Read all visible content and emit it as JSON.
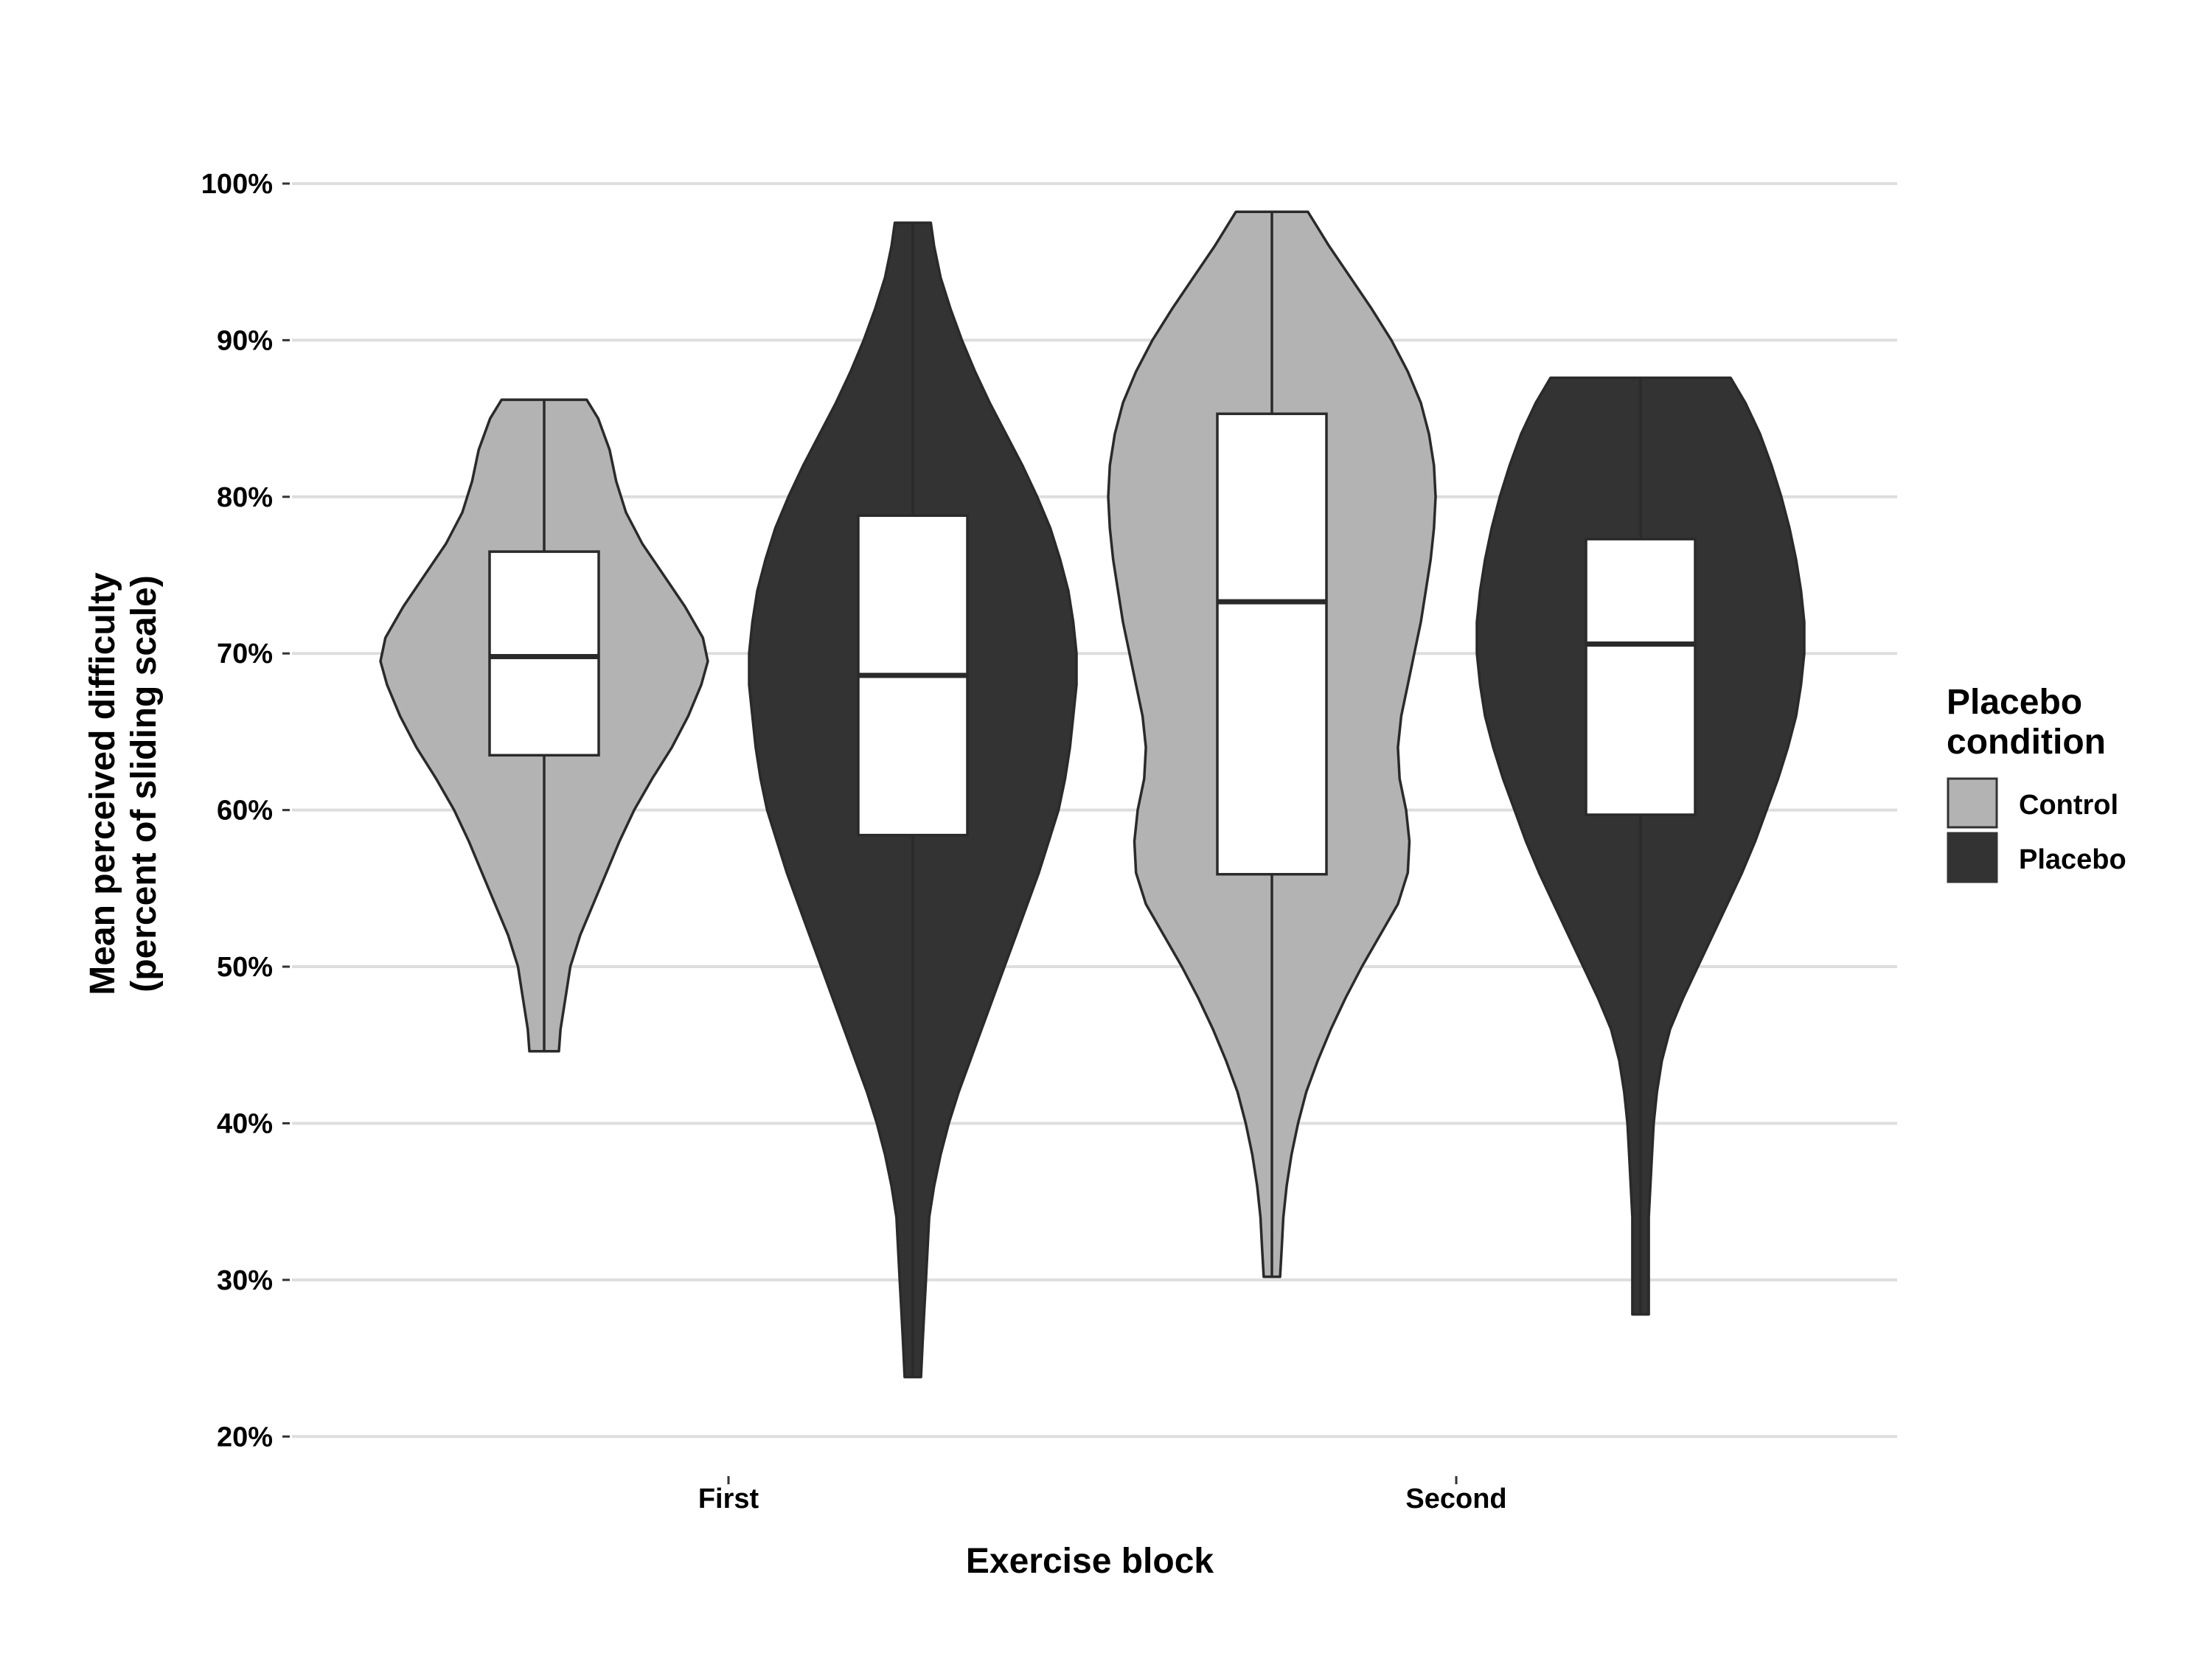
{
  "chart_data": {
    "type": "violin",
    "xlabel": "Exercise block",
    "ylabel_line1": "Mean perceived difficulty",
    "ylabel_line2": "(percent of sliding scale)",
    "y_tick_labels": [
      "20%",
      "30%",
      "40%",
      "50%",
      "60%",
      "70%",
      "80%",
      "90%",
      "100%"
    ],
    "y_ticks": [
      20,
      30,
      40,
      50,
      60,
      70,
      80,
      90,
      100
    ],
    "ylim": [
      17,
      104
    ],
    "grid": "horizontal",
    "categories": [
      "First",
      "Second"
    ],
    "legend": {
      "title_line1": "Placebo",
      "title_line2": "condition",
      "position": "right",
      "entries": [
        {
          "label": "Control",
          "color": "#b3b3b3"
        },
        {
          "label": "Placebo",
          "color": "#333333"
        }
      ]
    },
    "series": [
      {
        "name": "Control",
        "color": "#b3b3b3",
        "groups": [
          {
            "category": "First",
            "min": 44.6,
            "q1": 63.5,
            "median": 69.8,
            "q3": 76.5,
            "max": 86.2,
            "density": [
              [
                44.6,
                0.09
              ],
              [
                46,
                0.1
              ],
              [
                48,
                0.13
              ],
              [
                50,
                0.16
              ],
              [
                52,
                0.22
              ],
              [
                54,
                0.3
              ],
              [
                56,
                0.38
              ],
              [
                58,
                0.46
              ],
              [
                60,
                0.55
              ],
              [
                62,
                0.66
              ],
              [
                64,
                0.78
              ],
              [
                66,
                0.88
              ],
              [
                68,
                0.96
              ],
              [
                69.5,
                1.0
              ],
              [
                71,
                0.97
              ],
              [
                73,
                0.86
              ],
              [
                75,
                0.73
              ],
              [
                77,
                0.6
              ],
              [
                79,
                0.5
              ],
              [
                81,
                0.44
              ],
              [
                83,
                0.4
              ],
              [
                85,
                0.33
              ],
              [
                86.2,
                0.26
              ]
            ]
          },
          {
            "category": "Second",
            "min": 30.2,
            "q1": 55.9,
            "median": 73.3,
            "q3": 85.3,
            "max": 98.2,
            "density": [
              [
                30.2,
                0.05
              ],
              [
                32,
                0.06
              ],
              [
                34,
                0.07
              ],
              [
                36,
                0.09
              ],
              [
                38,
                0.12
              ],
              [
                40,
                0.16
              ],
              [
                42,
                0.21
              ],
              [
                44,
                0.28
              ],
              [
                46,
                0.36
              ],
              [
                48,
                0.45
              ],
              [
                50,
                0.55
              ],
              [
                52,
                0.66
              ],
              [
                54,
                0.77
              ],
              [
                56,
                0.83
              ],
              [
                58,
                0.84
              ],
              [
                60,
                0.82
              ],
              [
                62,
                0.78
              ],
              [
                64,
                0.77
              ],
              [
                66,
                0.79
              ],
              [
                68,
                0.83
              ],
              [
                70,
                0.87
              ],
              [
                72,
                0.91
              ],
              [
                74,
                0.94
              ],
              [
                76,
                0.97
              ],
              [
                78,
                0.99
              ],
              [
                80,
                1.0
              ],
              [
                82,
                0.99
              ],
              [
                84,
                0.96
              ],
              [
                86,
                0.91
              ],
              [
                88,
                0.83
              ],
              [
                90,
                0.73
              ],
              [
                92,
                0.61
              ],
              [
                94,
                0.48
              ],
              [
                96,
                0.35
              ],
              [
                98.2,
                0.22
              ]
            ]
          }
        ]
      },
      {
        "name": "Placebo",
        "color": "#333333",
        "groups": [
          {
            "category": "First",
            "min": 23.8,
            "q1": 58.4,
            "median": 68.6,
            "q3": 78.8,
            "max": 97.5,
            "density": [
              [
                23.8,
                0.05
              ],
              [
                26,
                0.06
              ],
              [
                28,
                0.07
              ],
              [
                30,
                0.08
              ],
              [
                32,
                0.09
              ],
              [
                34,
                0.1
              ],
              [
                36,
                0.13
              ],
              [
                38,
                0.17
              ],
              [
                40,
                0.22
              ],
              [
                42,
                0.28
              ],
              [
                44,
                0.35
              ],
              [
                46,
                0.42
              ],
              [
                48,
                0.49
              ],
              [
                50,
                0.56
              ],
              [
                52,
                0.63
              ],
              [
                54,
                0.7
              ],
              [
                56,
                0.77
              ],
              [
                58,
                0.83
              ],
              [
                60,
                0.89
              ],
              [
                62,
                0.93
              ],
              [
                64,
                0.96
              ],
              [
                66,
                0.98
              ],
              [
                68,
                1.0
              ],
              [
                70,
                1.0
              ],
              [
                72,
                0.98
              ],
              [
                74,
                0.95
              ],
              [
                76,
                0.9
              ],
              [
                78,
                0.84
              ],
              [
                80,
                0.76
              ],
              [
                82,
                0.67
              ],
              [
                84,
                0.57
              ],
              [
                86,
                0.47
              ],
              [
                88,
                0.38
              ],
              [
                90,
                0.3
              ],
              [
                92,
                0.23
              ],
              [
                94,
                0.17
              ],
              [
                96,
                0.13
              ],
              [
                97.5,
                0.11
              ]
            ]
          },
          {
            "category": "Second",
            "min": 27.8,
            "q1": 59.7,
            "median": 70.6,
            "q3": 77.3,
            "max": 87.6,
            "density": [
              [
                27.8,
                0.05
              ],
              [
                30,
                0.05
              ],
              [
                32,
                0.05
              ],
              [
                34,
                0.05
              ],
              [
                36,
                0.06
              ],
              [
                38,
                0.07
              ],
              [
                40,
                0.08
              ],
              [
                42,
                0.1
              ],
              [
                44,
                0.13
              ],
              [
                46,
                0.18
              ],
              [
                48,
                0.26
              ],
              [
                50,
                0.35
              ],
              [
                52,
                0.44
              ],
              [
                54,
                0.53
              ],
              [
                56,
                0.62
              ],
              [
                58,
                0.7
              ],
              [
                60,
                0.77
              ],
              [
                62,
                0.84
              ],
              [
                64,
                0.9
              ],
              [
                66,
                0.95
              ],
              [
                68,
                0.98
              ],
              [
                70,
                1.0
              ],
              [
                72,
                1.0
              ],
              [
                74,
                0.98
              ],
              [
                76,
                0.95
              ],
              [
                78,
                0.91
              ],
              [
                80,
                0.86
              ],
              [
                82,
                0.8
              ],
              [
                84,
                0.73
              ],
              [
                86,
                0.64
              ],
              [
                87.6,
                0.55
              ]
            ]
          }
        ]
      }
    ]
  }
}
